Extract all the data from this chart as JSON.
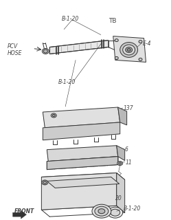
{
  "bg_color": "#ffffff",
  "line_color": "#333333",
  "label_color": "#444444",
  "fig_width": 2.49,
  "fig_height": 3.2,
  "dpi": 100,
  "labels": {
    "B1_20_top": "B-1-20",
    "TB": "TB",
    "PCV_HOSE": "PCV\nHOSE",
    "E4": "E-4",
    "B1_20_mid": "B-1-20",
    "num_137": "137",
    "num_6": "6",
    "num_11": "11",
    "num_20": "20",
    "B1_20_bot": "B-1-20",
    "FRONT": "FRONT"
  }
}
